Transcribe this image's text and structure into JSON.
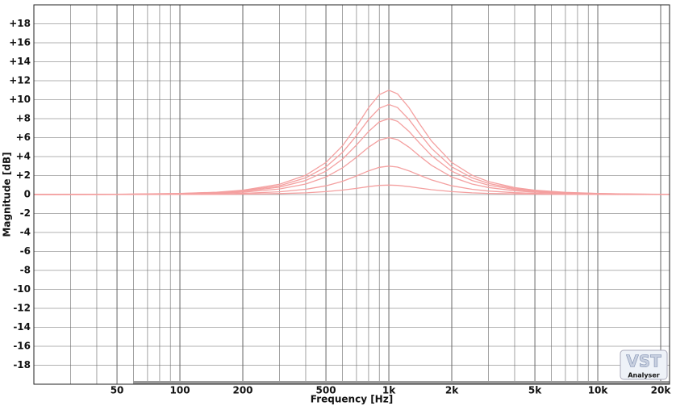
{
  "chart_data": {
    "type": "line",
    "x_label": "Frequency [Hz]",
    "y_label": "Magnitude [dB]",
    "logo_text": [
      "VST",
      "Analyser"
    ],
    "x": [
      20,
      50,
      100,
      150,
      200,
      300,
      400,
      500,
      600,
      700,
      800,
      900,
      1000,
      1100,
      1250,
      1400,
      1600,
      2000,
      2500,
      3000,
      4000,
      5000,
      7000,
      10000,
      15000,
      22050
    ],
    "series": [
      {
        "color": "#f4a0a0",
        "values": [
          0,
          0,
          0.01,
          0.02,
          0.04,
          0.1,
          0.18,
          0.31,
          0.47,
          0.65,
          0.83,
          0.96,
          1,
          0.96,
          0.83,
          0.68,
          0.51,
          0.31,
          0.18,
          0.12,
          0.07,
          0.04,
          0.02,
          0.01,
          0,
          0
        ]
      },
      {
        "color": "#f4a0a0",
        "values": [
          0,
          0.01,
          0.03,
          0.07,
          0.13,
          0.29,
          0.55,
          0.92,
          1.4,
          1.96,
          2.49,
          2.87,
          3,
          2.89,
          2.49,
          2.04,
          1.54,
          0.92,
          0.55,
          0.37,
          0.2,
          0.13,
          0.06,
          0.03,
          0.01,
          0.01
        ]
      },
      {
        "color": "#f4a0a0",
        "values": [
          0,
          0.02,
          0.06,
          0.14,
          0.25,
          0.59,
          1.11,
          1.85,
          2.81,
          3.92,
          4.99,
          5.74,
          6,
          5.79,
          4.99,
          4.08,
          3.08,
          1.85,
          1.11,
          0.74,
          0.4,
          0.25,
          0.13,
          0.06,
          0.03,
          0.01
        ]
      },
      {
        "color": "#f4a0a0",
        "values": [
          0,
          0.02,
          0.08,
          0.18,
          0.33,
          0.78,
          1.48,
          2.46,
          3.74,
          5.22,
          6.65,
          7.66,
          8,
          7.72,
          6.65,
          5.44,
          4.1,
          2.46,
          1.48,
          0.99,
          0.53,
          0.33,
          0.17,
          0.08,
          0.04,
          0.02
        ]
      },
      {
        "color": "#f4a0a0",
        "values": [
          0,
          0.02,
          0.1,
          0.22,
          0.4,
          0.93,
          1.76,
          2.92,
          4.44,
          6.2,
          7.9,
          9.09,
          9.5,
          9.17,
          7.9,
          6.46,
          4.87,
          2.92,
          1.76,
          1.17,
          0.63,
          0.4,
          0.2,
          0.1,
          0.04,
          0.02
        ]
      },
      {
        "color": "#f4a0a0",
        "values": [
          0,
          0.03,
          0.11,
          0.25,
          0.46,
          1.08,
          2.03,
          3.38,
          5.14,
          7.18,
          9.15,
          10.53,
          11,
          10.61,
          9.15,
          7.48,
          5.64,
          3.38,
          2.03,
          1.36,
          0.73,
          0.46,
          0.23,
          0.11,
          0.05,
          0.02
        ]
      }
    ],
    "log_x": true,
    "grid": true,
    "xlim": [
      20,
      22050
    ],
    "xticks": [
      50,
      100,
      200,
      500,
      {
        "value": 1000,
        "label": "1k"
      },
      {
        "value": 2000,
        "label": "2k"
      },
      {
        "value": 5000,
        "label": "5k"
      },
      {
        "value": 10000,
        "label": "10k"
      },
      {
        "value": 20000,
        "label": "20k"
      }
    ],
    "ylim": [
      -20,
      20
    ],
    "yticks": [
      -18,
      -16,
      -14,
      -12,
      -10,
      -8,
      -6,
      -4,
      -2,
      0,
      {
        "value": 2,
        "label": "+2"
      },
      {
        "value": 4,
        "label": "+4"
      },
      {
        "value": 6,
        "label": "+6"
      },
      {
        "value": 8,
        "label": "+8"
      },
      {
        "value": 10,
        "label": "+10"
      },
      {
        "value": 12,
        "label": "+12"
      },
      {
        "value": 14,
        "label": "+14"
      },
      {
        "value": 16,
        "label": "+16"
      },
      {
        "value": 18,
        "label": "+18"
      }
    ]
  }
}
